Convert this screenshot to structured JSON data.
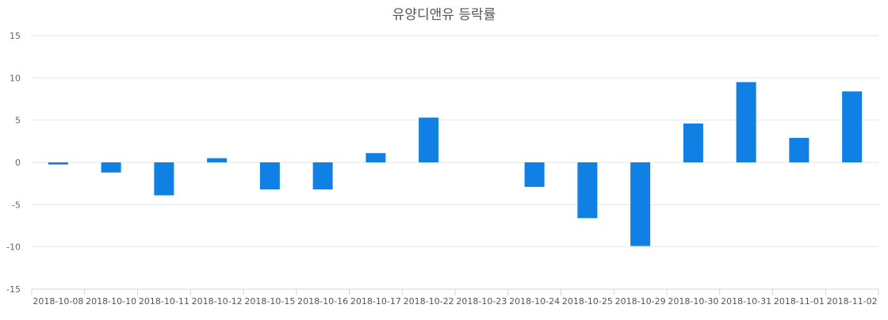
{
  "chart_data": {
    "type": "bar",
    "title": "유양디앤유 등락률",
    "categories": [
      "2018-10-08",
      "2018-10-10",
      "2018-10-11",
      "2018-10-12",
      "2018-10-15",
      "2018-10-16",
      "2018-10-17",
      "2018-10-22",
      "2018-10-23",
      "2018-10-24",
      "2018-10-25",
      "2018-10-29",
      "2018-10-30",
      "2018-10-31",
      "2018-11-01",
      "2018-11-02"
    ],
    "values": [
      -0.25,
      -1.2,
      -3.9,
      0.5,
      -3.2,
      -3.2,
      1.1,
      5.3,
      0,
      -2.9,
      -6.6,
      -9.9,
      4.6,
      9.5,
      2.9,
      8.4
    ],
    "ylim": [
      -15,
      15
    ],
    "yticks": [
      15,
      10,
      5,
      0,
      -5,
      -10,
      -15
    ],
    "xlabel": "",
    "ylabel": "",
    "grid": true,
    "bar_color": "#1080e4"
  }
}
